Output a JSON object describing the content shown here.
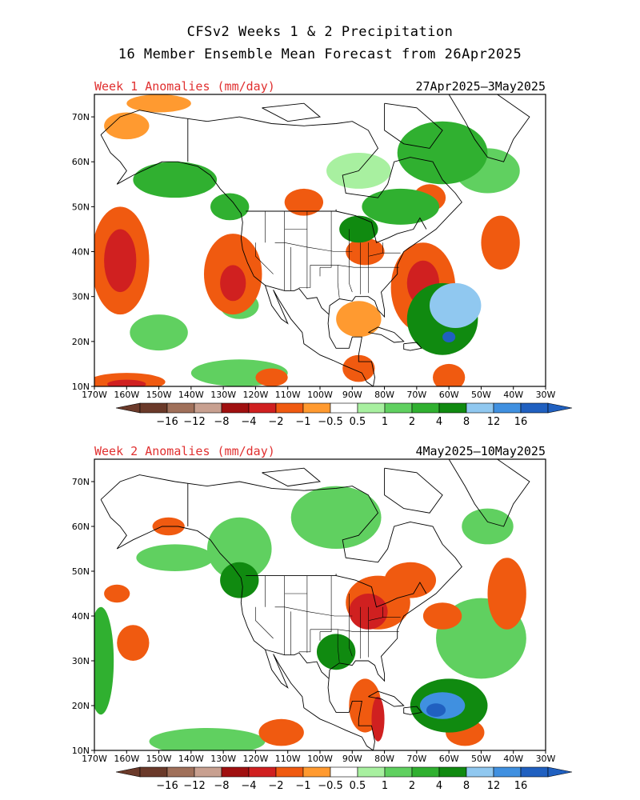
{
  "header": {
    "title_line1": "CFSv2 Weeks 1 & 2 Precipitation",
    "title_line2": "16 Member Ensemble Mean Forecast from 26Apr2025"
  },
  "panels": [
    {
      "label": "Week 1 Anomalies (mm/day)",
      "period": "27Apr2025–3May2025",
      "lat_ticks": [
        "70N",
        "60N",
        "50N",
        "40N",
        "30N",
        "20N",
        "10N"
      ],
      "lon_ticks": [
        "170W",
        "160W",
        "150W",
        "140W",
        "130W",
        "120W",
        "110W",
        "100W",
        "90W",
        "80W",
        "70W",
        "60W",
        "50W",
        "40W",
        "30W"
      ],
      "anomalies": [
        {
          "name": "wet-n-atlantic",
          "lon": -62,
          "lat": 62,
          "rx": 14,
          "ry": 7,
          "level": 3
        },
        {
          "name": "wet-greenland-s",
          "lon": -48,
          "lat": 58,
          "rx": 10,
          "ry": 5,
          "level": 2
        },
        {
          "name": "wet-canada-e",
          "lon": -75,
          "lat": 50,
          "rx": 12,
          "ry": 4,
          "level": 3
        },
        {
          "name": "wet-caribbean",
          "lon": -62,
          "lat": 25,
          "rx": 11,
          "ry": 8,
          "level": 4
        },
        {
          "name": "wet-mid-atl",
          "lon": -58,
          "lat": 28,
          "rx": 8,
          "ry": 5,
          "level": 5
        },
        {
          "name": "wet-caribbean-core",
          "lon": -60,
          "lat": 21,
          "rx": 2,
          "ry": 1.2,
          "level": 7
        },
        {
          "name": "wet-gulf-alaska",
          "lon": -145,
          "lat": 56,
          "rx": 13,
          "ry": 4,
          "level": 3
        },
        {
          "name": "wet-bc-coast",
          "lon": -128,
          "lat": 50,
          "rx": 6,
          "ry": 3,
          "level": 3
        },
        {
          "name": "wet-ne-pacific",
          "lon": -150,
          "lat": 22,
          "rx": 9,
          "ry": 4,
          "level": 2
        },
        {
          "name": "wet-trop-pacific",
          "lon": -125,
          "lat": 13,
          "rx": 15,
          "ry": 3,
          "level": 2
        },
        {
          "name": "wet-great-lakes",
          "lon": -88,
          "lat": 45,
          "rx": 6,
          "ry": 3,
          "level": 4
        },
        {
          "name": "wet-hudson",
          "lon": -88,
          "lat": 58,
          "rx": 10,
          "ry": 4,
          "level": 1
        },
        {
          "name": "wet-pacific-30n",
          "lon": -125,
          "lat": 28,
          "rx": 6,
          "ry": 3,
          "level": 2
        },
        {
          "name": "dry-ne-pacific",
          "lon": -162,
          "lat": 38,
          "rx": 9,
          "ry": 12,
          "level": -2
        },
        {
          "name": "dry-ne-pacific-core",
          "lon": -162,
          "lat": 38,
          "rx": 5,
          "ry": 7,
          "level": -3
        },
        {
          "name": "dry-e-pacific",
          "lon": -127,
          "lat": 35,
          "rx": 9,
          "ry": 9,
          "level": -2
        },
        {
          "name": "dry-e-pacific-core",
          "lon": -127,
          "lat": 33,
          "rx": 4,
          "ry": 4,
          "level": -3
        },
        {
          "name": "dry-se-us-coast",
          "lon": -68,
          "lat": 32,
          "rx": 10,
          "ry": 10,
          "level": -2
        },
        {
          "name": "dry-se-us-core",
          "lon": -68,
          "lat": 33,
          "rx": 5,
          "ry": 5,
          "level": -3
        },
        {
          "name": "dry-ohio",
          "lon": -86,
          "lat": 40,
          "rx": 6,
          "ry": 3,
          "level": -2
        },
        {
          "name": "dry-n-plains",
          "lon": -105,
          "lat": 51,
          "rx": 6,
          "ry": 3,
          "level": -2
        },
        {
          "name": "dry-quebec",
          "lon": -66,
          "lat": 52,
          "rx": 5,
          "ry": 3,
          "level": -2
        },
        {
          "name": "dry-alaska-nw",
          "lon": -160,
          "lat": 68,
          "rx": 7,
          "ry": 3,
          "level": -1
        },
        {
          "name": "dry-arctic",
          "lon": -150,
          "lat": 73,
          "rx": 10,
          "ry": 2,
          "level": -1
        },
        {
          "name": "dry-atlantic-e",
          "lon": -44,
          "lat": 42,
          "rx": 6,
          "ry": 6,
          "level": -2
        },
        {
          "name": "dry-gulf",
          "lon": -88,
          "lat": 25,
          "rx": 7,
          "ry": 4,
          "level": -1
        },
        {
          "name": "dry-c-america",
          "lon": -88,
          "lat": 14,
          "rx": 5,
          "ry": 3,
          "level": -2
        },
        {
          "name": "dry-trop-pacific",
          "lon": -160,
          "lat": 11,
          "rx": 12,
          "ry": 2,
          "level": -2
        },
        {
          "name": "dry-trop-pacific-core",
          "lon": -160,
          "lat": 10.5,
          "rx": 6,
          "ry": 1,
          "level": -3
        },
        {
          "name": "dry-trop-atlantic",
          "lon": -60,
          "lat": 12,
          "rx": 5,
          "ry": 3,
          "level": -2
        },
        {
          "name": "dry-e-pacific-110w",
          "lon": -115,
          "lat": 12,
          "rx": 5,
          "ry": 2,
          "level": -2
        }
      ]
    },
    {
      "label": "Week 2 Anomalies (mm/day)",
      "period": "4May2025–10May2025",
      "lat_ticks": [
        "70N",
        "60N",
        "50N",
        "40N",
        "30N",
        "20N",
        "10N"
      ],
      "lon_ticks": [
        "170W",
        "160W",
        "150W",
        "140W",
        "130W",
        "120W",
        "110W",
        "100W",
        "90W",
        "80W",
        "70W",
        "60W",
        "50W",
        "40W",
        "30W"
      ],
      "anomalies": [
        {
          "name": "wet-canada-w",
          "lon": -125,
          "lat": 55,
          "rx": 10,
          "ry": 7,
          "level": 2
        },
        {
          "name": "wet-hudson-bay",
          "lon": -95,
          "lat": 62,
          "rx": 14,
          "ry": 7,
          "level": 2
        },
        {
          "name": "wet-alaska-gulf",
          "lon": -145,
          "lat": 53,
          "rx": 12,
          "ry": 3,
          "level": 2
        },
        {
          "name": "wet-bc",
          "lon": -125,
          "lat": 48,
          "rx": 6,
          "ry": 4,
          "level": 4
        },
        {
          "name": "wet-atlantic-mid",
          "lon": -50,
          "lat": 35,
          "rx": 14,
          "ry": 9,
          "level": 2
        },
        {
          "name": "wet-caribbean",
          "lon": -60,
          "lat": 20,
          "rx": 12,
          "ry": 6,
          "level": 4
        },
        {
          "name": "wet-caribbean-core",
          "lon": -62,
          "lat": 20,
          "rx": 7,
          "ry": 3,
          "level": 6
        },
        {
          "name": "wet-caribbean-max",
          "lon": -64,
          "lat": 19,
          "rx": 3,
          "ry": 1.5,
          "level": 7
        },
        {
          "name": "wet-pacific-west",
          "lon": -168,
          "lat": 30,
          "rx": 4,
          "ry": 12,
          "level": 3
        },
        {
          "name": "wet-trop-pacific",
          "lon": -135,
          "lat": 12,
          "rx": 18,
          "ry": 3,
          "level": 2
        },
        {
          "name": "wet-gulf-coast",
          "lon": -95,
          "lat": 32,
          "rx": 6,
          "ry": 4,
          "level": 4
        },
        {
          "name": "wet-greenland-sw",
          "lon": -48,
          "lat": 60,
          "rx": 8,
          "ry": 4,
          "level": 2
        },
        {
          "name": "dry-great-lakes",
          "lon": -82,
          "lat": 43,
          "rx": 10,
          "ry": 6,
          "level": -2
        },
        {
          "name": "dry-great-lakes-core",
          "lon": -85,
          "lat": 41,
          "rx": 6,
          "ry": 4,
          "level": -3
        },
        {
          "name": "dry-quebec",
          "lon": -72,
          "lat": 48,
          "rx": 8,
          "ry": 4,
          "level": -2
        },
        {
          "name": "dry-pacific-38n",
          "lon": -158,
          "lat": 34,
          "rx": 5,
          "ry": 4,
          "level": -2
        },
        {
          "name": "dry-pacific-45n",
          "lon": -163,
          "lat": 45,
          "rx": 4,
          "ry": 2,
          "level": -2
        },
        {
          "name": "dry-n-atlantic",
          "lon": -42,
          "lat": 45,
          "rx": 6,
          "ry": 8,
          "level": -2
        },
        {
          "name": "dry-atlantic-38n",
          "lon": -62,
          "lat": 40,
          "rx": 6,
          "ry": 3,
          "level": -2
        },
        {
          "name": "dry-gulf-yucatan",
          "lon": -86,
          "lat": 20,
          "rx": 5,
          "ry": 6,
          "level": -2
        },
        {
          "name": "dry-yucatan-core",
          "lon": -82,
          "lat": 17,
          "rx": 2,
          "ry": 5,
          "level": -3
        },
        {
          "name": "dry-e-pacific",
          "lon": -112,
          "lat": 14,
          "rx": 7,
          "ry": 3,
          "level": -2
        },
        {
          "name": "dry-atlantic-15n",
          "lon": -55,
          "lat": 14,
          "rx": 6,
          "ry": 3,
          "level": -2
        },
        {
          "name": "dry-alaska-s",
          "lon": -147,
          "lat": 60,
          "rx": 5,
          "ry": 2,
          "level": -2
        }
      ]
    }
  ],
  "colorbar": {
    "labels": [
      "−16",
      "−12",
      "−8",
      "−4",
      "−2",
      "−1",
      "−0.5",
      "0.5",
      "1",
      "2",
      "4",
      "8",
      "12",
      "16"
    ],
    "colors": [
      "#6b3a2a",
      "#a0705a",
      "#c8a090",
      "#a01010",
      "#d02020",
      "#f05a10",
      "#ff9a30",
      "#ffffff",
      "#a8f0a0",
      "#60d060",
      "#30b030",
      "#108a10",
      "#90c8f0",
      "#4090e0",
      "#2060c0"
    ],
    "end_left_color": "#6b3a2a",
    "end_right_color": "#2060c0"
  }
}
